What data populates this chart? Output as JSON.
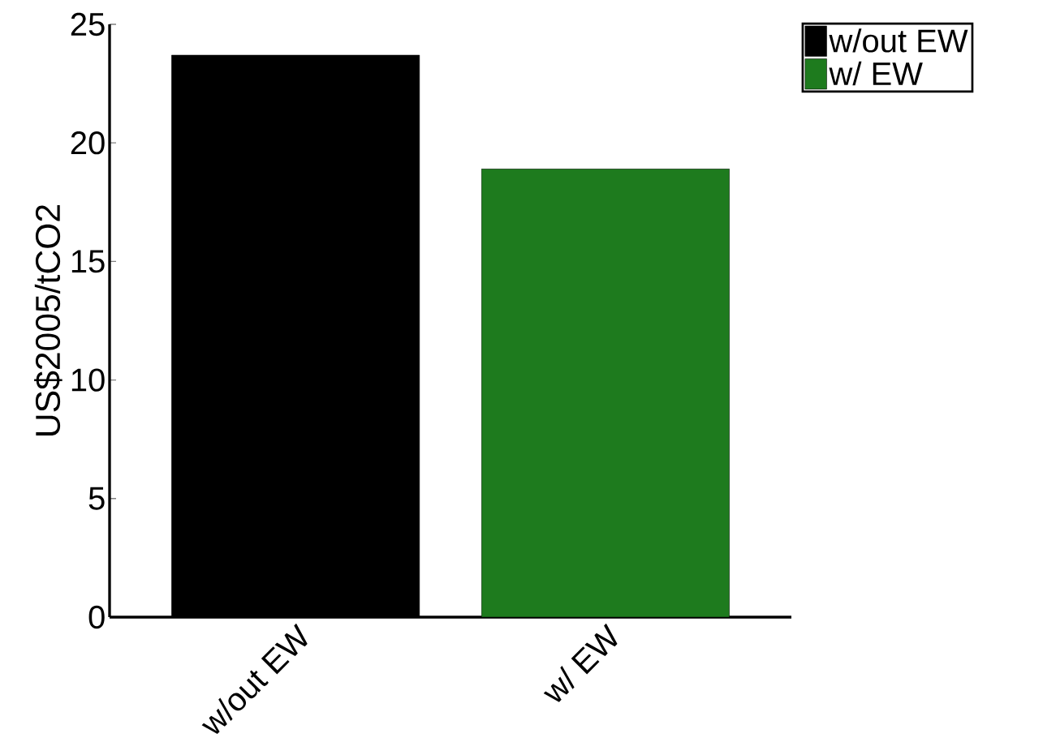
{
  "chart_data": {
    "type": "bar",
    "ylabel": "US$2005/tCO2",
    "categories": [
      "w/out EW",
      "w/ EW"
    ],
    "series": [
      {
        "name": "w/out EW",
        "color": "#000000",
        "values": [
          23.7,
          null
        ]
      },
      {
        "name": "w/ EW",
        "color": "#1e7b1e",
        "values": [
          null,
          18.9
        ]
      }
    ],
    "ylim": [
      0,
      25
    ],
    "yticks": [
      0,
      5,
      10,
      15,
      20,
      25
    ],
    "grid": false,
    "legend": "top right"
  }
}
